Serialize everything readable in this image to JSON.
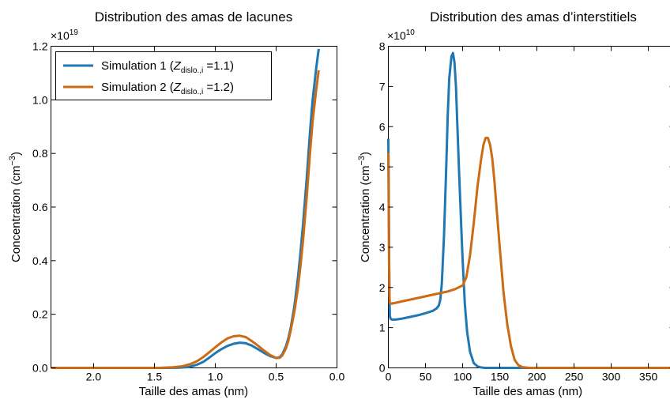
{
  "chart_data": [
    {
      "type": "line",
      "title": "Distribution des amas de lacunes",
      "xlabel": "Taille des amas (nm)",
      "ylabel_main": "Concentration (cm",
      "ylabel_exp": "−3",
      "ylabel_close": ")",
      "offset_base": "×10",
      "offset_exp": "19",
      "x_inverted": true,
      "xlim": [
        2.35,
        0.0
      ],
      "ylim": [
        0,
        1.2
      ],
      "xticks": [
        2.0,
        1.5,
        1.0,
        0.5,
        0.0
      ],
      "xtick_labels": [
        "2.0",
        "1.5",
        "1.0",
        "0.5",
        "0.0"
      ],
      "yticks": [
        0.0,
        0.2,
        0.4,
        0.6,
        0.8,
        1.0,
        1.2
      ],
      "ytick_labels": [
        "0.0",
        "0.2",
        "0.4",
        "0.6",
        "0.8",
        "1.0",
        "1.2"
      ],
      "grid": false,
      "legend": {
        "placement": "top-left",
        "entries": [
          {
            "prefix": "Simulation 1 (",
            "sym": "Z",
            "sub": "dislo.,i",
            "suffix": " =1.1)"
          },
          {
            "prefix": "Simulation 2 (",
            "sym": "Z",
            "sub": "dislo.,i",
            "suffix": " =1.2)"
          }
        ]
      },
      "series": [
        {
          "color": "#1f77b4",
          "x": [
            2.35,
            2.2,
            2.0,
            1.8,
            1.6,
            1.4,
            1.3,
            1.22,
            1.15,
            1.1,
            1.05,
            1.0,
            0.95,
            0.9,
            0.85,
            0.8,
            0.75,
            0.7,
            0.65,
            0.6,
            0.55,
            0.5,
            0.47,
            0.45,
            0.42,
            0.4,
            0.38,
            0.35,
            0.32,
            0.3,
            0.28,
            0.25,
            0.22,
            0.2,
            0.17,
            0.15
          ],
          "y": [
            0,
            0,
            0,
            0,
            0,
            0,
            0.0005,
            0.003,
            0.012,
            0.022,
            0.038,
            0.055,
            0.07,
            0.082,
            0.09,
            0.094,
            0.092,
            0.083,
            0.07,
            0.056,
            0.044,
            0.037,
            0.04,
            0.05,
            0.08,
            0.11,
            0.15,
            0.23,
            0.34,
            0.43,
            0.53,
            0.7,
            0.89,
            1.0,
            1.12,
            1.19
          ]
        },
        {
          "color": "#cc6b14",
          "x": [
            2.35,
            2.2,
            2.0,
            1.8,
            1.6,
            1.45,
            1.35,
            1.27,
            1.2,
            1.15,
            1.1,
            1.05,
            1.0,
            0.95,
            0.9,
            0.85,
            0.8,
            0.75,
            0.7,
            0.65,
            0.6,
            0.55,
            0.5,
            0.47,
            0.45,
            0.42,
            0.4,
            0.38,
            0.35,
            0.32,
            0.3,
            0.28,
            0.25,
            0.22,
            0.2,
            0.17,
            0.15
          ],
          "y": [
            0,
            0,
            0,
            0,
            0,
            0.0003,
            0.002,
            0.006,
            0.015,
            0.025,
            0.04,
            0.058,
            0.077,
            0.095,
            0.11,
            0.118,
            0.12,
            0.115,
            0.1,
            0.083,
            0.065,
            0.048,
            0.037,
            0.038,
            0.046,
            0.072,
            0.1,
            0.14,
            0.21,
            0.3,
            0.38,
            0.47,
            0.63,
            0.81,
            0.92,
            1.04,
            1.11
          ]
        }
      ]
    },
    {
      "type": "line",
      "title": "Distribution des amas d’interstitiels",
      "xlabel": "Taille des amas (nm)",
      "ylabel_main": "Concentration (cm",
      "ylabel_exp": "−3",
      "ylabel_close": ")",
      "offset_base": "×10",
      "offset_exp": "10",
      "x_inverted": false,
      "xlim": [
        0,
        385
      ],
      "ylim": [
        0,
        8
      ],
      "xticks": [
        0,
        50,
        100,
        150,
        200,
        250,
        300,
        350
      ],
      "xtick_labels": [
        "0",
        "50",
        "100",
        "150",
        "200",
        "250",
        "300",
        "350"
      ],
      "yticks": [
        0,
        1,
        2,
        3,
        4,
        5,
        6,
        7,
        8
      ],
      "ytick_labels": [
        "0",
        "1",
        "2",
        "3",
        "4",
        "5",
        "6",
        "7",
        "8"
      ],
      "grid": false,
      "series": [
        {
          "color": "#1f77b4",
          "x": [
            0,
            0.5,
            1,
            1.5,
            2,
            3,
            5,
            10,
            20,
            30,
            40,
            50,
            60,
            65,
            68,
            70,
            72,
            75,
            78,
            80,
            82,
            85,
            87,
            89,
            91,
            93,
            95,
            98,
            100,
            103,
            106,
            110,
            115,
            120,
            125,
            130,
            140,
            160,
            385
          ],
          "y": [
            5.7,
            4.5,
            3.0,
            1.8,
            1.3,
            1.22,
            1.2,
            1.2,
            1.23,
            1.27,
            1.31,
            1.36,
            1.42,
            1.48,
            1.55,
            1.7,
            2.1,
            3.3,
            5.0,
            6.3,
            7.2,
            7.75,
            7.83,
            7.6,
            7.0,
            6.0,
            5.0,
            3.6,
            2.7,
            1.6,
            0.9,
            0.4,
            0.12,
            0.04,
            0.01,
            0,
            0,
            0,
            0
          ]
        },
        {
          "color": "#cc6b14",
          "x": [
            0,
            0.5,
            1,
            1.5,
            2,
            3,
            5,
            20,
            40,
            60,
            80,
            90,
            100,
            105,
            110,
            115,
            120,
            125,
            128,
            131,
            134,
            137,
            140,
            143,
            146,
            150,
            155,
            160,
            165,
            170,
            175,
            180,
            190,
            200,
            385
          ],
          "y": [
            5.35,
            4.0,
            2.8,
            1.8,
            1.62,
            1.6,
            1.6,
            1.66,
            1.74,
            1.82,
            1.9,
            1.96,
            2.05,
            2.25,
            2.8,
            3.6,
            4.5,
            5.2,
            5.55,
            5.72,
            5.72,
            5.55,
            5.2,
            4.6,
            3.9,
            3.0,
            1.9,
            1.1,
            0.55,
            0.2,
            0.07,
            0.02,
            0,
            0,
            0
          ]
        }
      ]
    }
  ]
}
